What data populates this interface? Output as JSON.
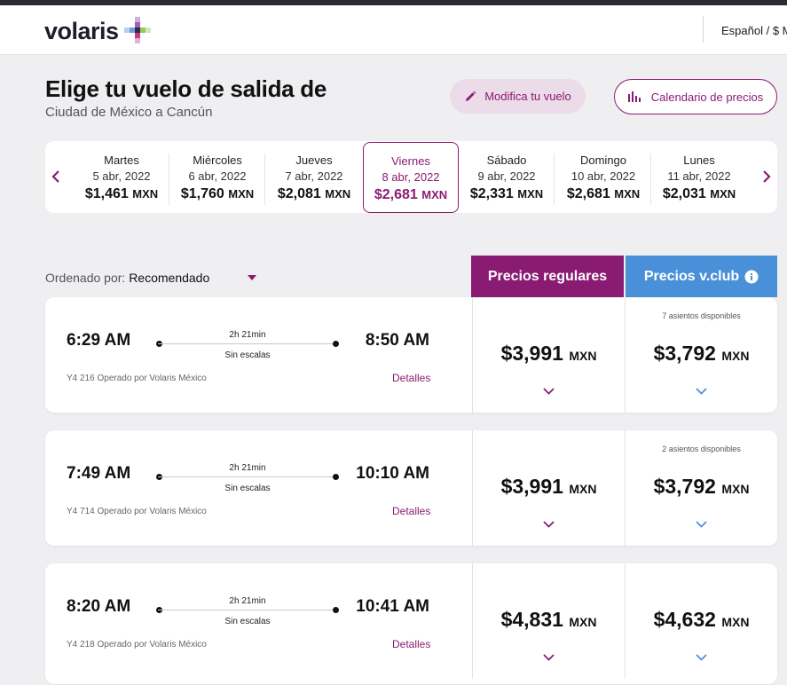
{
  "header": {
    "logo_text": "volaris",
    "language": "Español / $ M"
  },
  "page": {
    "title": "Elige tu vuelo de salida de",
    "subtitle": "Ciudad de México a Cancún",
    "modify_label": "Modifica tu vuelo",
    "calendar_label": "Calendario de precios"
  },
  "dates": [
    {
      "day": "Martes",
      "date": "5 abr, 2022",
      "price": "$1,461",
      "currency": "MXN",
      "selected": false
    },
    {
      "day": "Miércoles",
      "date": "6 abr, 2022",
      "price": "$1,760",
      "currency": "MXN",
      "selected": false
    },
    {
      "day": "Jueves",
      "date": "7 abr, 2022",
      "price": "$2,081",
      "currency": "MXN",
      "selected": false
    },
    {
      "day": "Viernes",
      "date": "8 abr, 2022",
      "price": "$2,681",
      "currency": "MXN",
      "selected": true
    },
    {
      "day": "Sábado",
      "date": "9 abr, 2022",
      "price": "$2,331",
      "currency": "MXN",
      "selected": false
    },
    {
      "day": "Domingo",
      "date": "10 abr, 2022",
      "price": "$2,681",
      "currency": "MXN",
      "selected": false
    },
    {
      "day": "Lunes",
      "date": "11 abr, 2022",
      "price": "$2,031",
      "currency": "MXN",
      "selected": false
    }
  ],
  "sort": {
    "label": "Ordenado por:",
    "value": "Recomendado"
  },
  "tabs": {
    "regular": "Precios regulares",
    "vclub": "Precios v.club"
  },
  "flights": [
    {
      "dep": "6:29 AM",
      "arr": "8:50 AM",
      "duration": "2h 21min",
      "stops": "Sin escalas",
      "operator": "Y4 216 Operado por Volaris México",
      "details": "Detalles",
      "price_regular": "$3,991",
      "price_vclub": "$3,792",
      "currency": "MXN",
      "seats": "7 asientos disponibles"
    },
    {
      "dep": "7:49 AM",
      "arr": "10:10 AM",
      "duration": "2h 21min",
      "stops": "Sin escalas",
      "operator": "Y4 714 Operado por Volaris México",
      "details": "Detalles",
      "price_regular": "$3,991",
      "price_vclub": "$3,792",
      "currency": "MXN",
      "seats": "2 asientos disponibles"
    },
    {
      "dep": "8:20 AM",
      "arr": "10:41 AM",
      "duration": "2h 21min",
      "stops": "Sin escalas",
      "operator": "Y4 218 Operado por Volaris México",
      "details": "Detalles",
      "price_regular": "$4,831",
      "price_vclub": "$4,632",
      "currency": "MXN",
      "seats": ""
    }
  ],
  "colors": {
    "brand": "#8a1b73",
    "vclub": "#4a90d9"
  }
}
